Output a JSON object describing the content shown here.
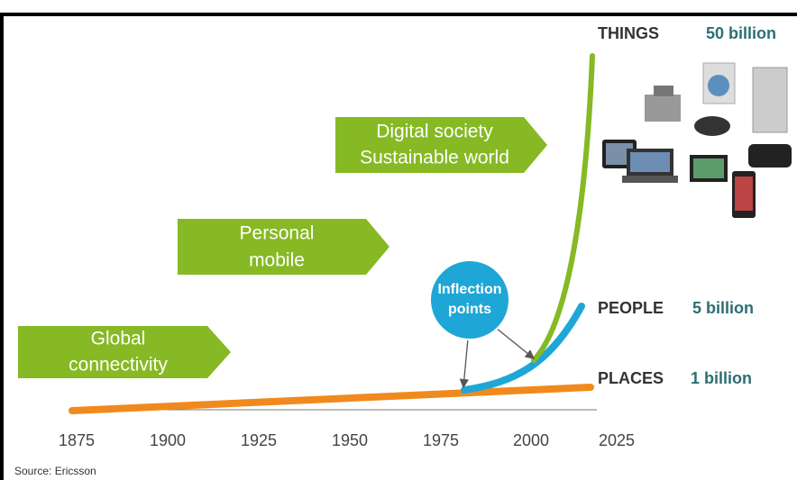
{
  "stages": [
    {
      "lines": [
        "Global",
        "connectivity"
      ]
    },
    {
      "lines": [
        "Personal",
        "mobile"
      ]
    },
    {
      "lines": [
        "Digital society",
        "Sustainable world"
      ]
    }
  ],
  "callout": {
    "lines": [
      "Inflection",
      "points"
    ]
  },
  "groups": [
    {
      "label": "THINGS",
      "count": "50 billion"
    },
    {
      "label": "PEOPLE",
      "count": "5 billion"
    },
    {
      "label": "PLACES",
      "count": "1 billion"
    }
  ],
  "x_axis": {
    "ticks": [
      1875,
      1900,
      1925,
      1950,
      1975,
      2000,
      2025
    ]
  },
  "source": "Source: Ericsson"
}
